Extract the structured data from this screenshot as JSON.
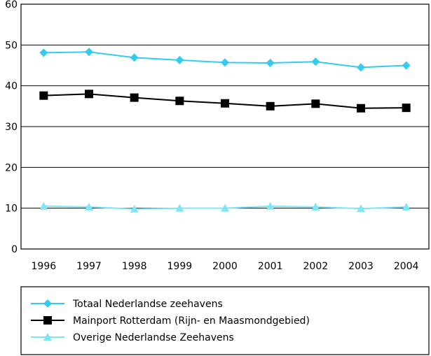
{
  "chart_data": {
    "type": "line",
    "title": "",
    "xlabel": "",
    "ylabel": "",
    "categories": [
      "1996",
      "1997",
      "1998",
      "1999",
      "2000",
      "2001",
      "2002",
      "2003",
      "2004"
    ],
    "ylim": [
      0,
      60
    ],
    "yticks": [
      "0",
      "10",
      "20",
      "30",
      "40",
      "50",
      "60"
    ],
    "grid": "horizontal",
    "legend_position": "bottom",
    "series": [
      {
        "name": "Totaal Nederlandse zeehavens",
        "values": [
          48.1,
          48.3,
          46.9,
          46.3,
          45.7,
          45.6,
          45.9,
          44.5,
          45.0
        ],
        "color": "#33ccf0",
        "marker": "diamond"
      },
      {
        "name": "Mainport Rotterdam (Rijn- en Maasmondgebied)",
        "values": [
          37.6,
          38.0,
          37.1,
          36.3,
          35.7,
          35.0,
          35.6,
          34.5,
          34.6
        ],
        "color": "#000000",
        "marker": "square"
      },
      {
        "name": "Overige Nederlandse Zeehavens",
        "values": [
          10.5,
          10.3,
          9.8,
          10.0,
          10.0,
          10.5,
          10.3,
          9.9,
          10.3
        ],
        "color": "#80e6f7",
        "marker": "triangle"
      }
    ]
  }
}
